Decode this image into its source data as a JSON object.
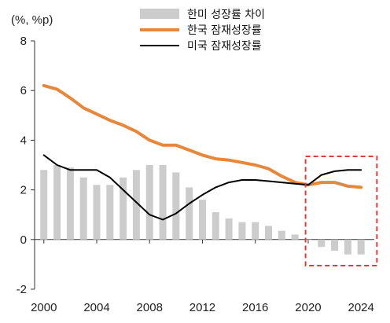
{
  "chart_data": {
    "type": "bar+line",
    "unit_label": "(%, %p)",
    "x": [
      2000,
      2001,
      2002,
      2003,
      2004,
      2005,
      2006,
      2007,
      2008,
      2009,
      2010,
      2011,
      2012,
      2013,
      2014,
      2015,
      2016,
      2017,
      2018,
      2019,
      2020,
      2021,
      2022,
      2023,
      2024
    ],
    "x_tick_labels": [
      "2000",
      "2004",
      "2008",
      "2012",
      "2016",
      "2020",
      "2024"
    ],
    "x_tick_values": [
      2000,
      2004,
      2008,
      2012,
      2016,
      2020,
      2024
    ],
    "y_tick_values": [
      -2,
      0,
      2,
      4,
      6,
      8
    ],
    "y_tick_labels": [
      "-2",
      "0",
      "2",
      "4",
      "6",
      "8"
    ],
    "ylim": [
      -2,
      8
    ],
    "legend_placement": "top",
    "series": [
      {
        "name": "한미 성장률 차이",
        "kind": "bar",
        "color": "#cccccc",
        "values": [
          2.8,
          3.0,
          2.9,
          2.5,
          2.2,
          2.2,
          2.5,
          2.8,
          3.0,
          3.0,
          2.7,
          2.1,
          1.6,
          1.1,
          0.85,
          0.7,
          0.7,
          0.55,
          0.35,
          0.2,
          -0.02,
          -0.3,
          -0.45,
          -0.6,
          -0.6
        ]
      },
      {
        "name": "한국 잠재성장률",
        "kind": "line",
        "color": "#e8873a",
        "values": [
          6.2,
          6.05,
          5.7,
          5.3,
          5.05,
          4.8,
          4.6,
          4.35,
          4.0,
          3.8,
          3.8,
          3.6,
          3.4,
          3.25,
          3.2,
          3.1,
          3.0,
          2.85,
          2.55,
          2.3,
          2.2,
          2.3,
          2.3,
          2.15,
          2.1
        ]
      },
      {
        "name": "미국 잠재성장률",
        "kind": "line",
        "color": "#000000",
        "values": [
          3.4,
          3.0,
          2.8,
          2.8,
          2.8,
          2.5,
          2.0,
          1.5,
          1.0,
          0.8,
          1.05,
          1.45,
          1.8,
          2.1,
          2.3,
          2.4,
          2.4,
          2.35,
          2.3,
          2.25,
          2.2,
          2.6,
          2.75,
          2.8,
          2.8
        ]
      }
    ],
    "highlight_box": {
      "x_range": [
        2019.8,
        2025.2
      ],
      "y_range": [
        -1.05,
        3.35
      ],
      "color": "#e23a3a"
    }
  }
}
